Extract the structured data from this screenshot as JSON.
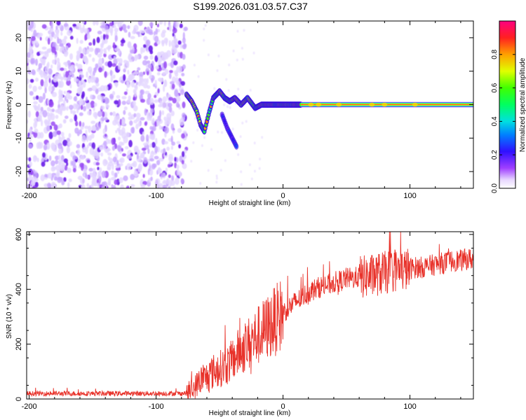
{
  "title": "S199.2026.031.03.57.C37",
  "chart_data": [
    {
      "type": "heatmap",
      "xlabel": "Height of straight line (km)",
      "ylabel": "Frequency (Hz)",
      "xlim": [
        -202,
        150
      ],
      "ylim": [
        -25,
        25
      ],
      "xticks": [
        -200,
        -100,
        0,
        100
      ],
      "xtick_labels": [
        "-200",
        "-100",
        "0",
        "100"
      ],
      "yticks": [
        -20,
        -10,
        0,
        10,
        20
      ],
      "ytick_labels": [
        "-20",
        "-10",
        "0",
        "10",
        "20"
      ],
      "colorbar": {
        "label": "Normalized spectral amplitude",
        "range": [
          0,
          1
        ],
        "ticks": [
          0.0,
          0.2,
          0.4,
          0.6,
          0.8
        ],
        "tick_labels": [
          "0.0",
          "0.2",
          "0.4",
          "0.6",
          "0.8"
        ]
      },
      "features": [
        {
          "name": "noise-region",
          "x_range": [
            -202,
            -76
          ],
          "freq_range": [
            -25,
            25
          ],
          "amplitude": 0.15
        },
        {
          "name": "doppler-track-main",
          "points": [
            [
              -76,
              3
            ],
            [
              -72,
              1
            ],
            [
              -68,
              -2
            ],
            [
              -65,
              -6
            ],
            [
              -62,
              -8
            ],
            [
              -58,
              -2
            ],
            [
              -55,
              2
            ],
            [
              -50,
              4
            ],
            [
              -46,
              2
            ],
            [
              -42,
              1
            ],
            [
              -38,
              2
            ],
            [
              -33,
              0
            ],
            [
              -28,
              2
            ],
            [
              -22,
              -1
            ],
            [
              -17,
              0
            ],
            [
              -12,
              0
            ],
            [
              -7,
              0
            ],
            [
              -2,
              0
            ],
            [
              4,
              0
            ],
            [
              10,
              0
            ],
            [
              150,
              0
            ]
          ],
          "amplitude": 0.85
        },
        {
          "name": "doppler-track-secondary",
          "points": [
            [
              -48,
              -3
            ],
            [
              -44,
              -7
            ],
            [
              -40,
              -10
            ],
            [
              -36,
              -13
            ]
          ],
          "amplitude": 0.3
        },
        {
          "name": "carrier-line",
          "x_range": [
            14,
            150
          ],
          "freq": 0,
          "amplitude": 1.0
        }
      ]
    },
    {
      "type": "line",
      "xlabel": "Height of straight line (km)",
      "ylabel": "SNR (10 * v/v)",
      "xlim": [
        -202,
        150
      ],
      "ylim": [
        0,
        610
      ],
      "xticks": [
        -200,
        -100,
        0,
        100
      ],
      "xtick_labels": [
        "-200",
        "-100",
        "0",
        "100"
      ],
      "yticks": [
        0,
        200,
        400,
        600
      ],
      "ytick_labels": [
        "0",
        "200",
        "400",
        "600"
      ],
      "series": [
        {
          "name": "SNR",
          "color": "#e8322a",
          "x": [
            -202,
            -180,
            -160,
            -140,
            -120,
            -100,
            -90,
            -80,
            -75,
            -70,
            -65,
            -60,
            -55,
            -50,
            -45,
            -40,
            -35,
            -30,
            -25,
            -20,
            -15,
            -10,
            -5,
            0,
            5,
            10,
            15,
            20,
            25,
            30,
            35,
            40,
            45,
            50,
            55,
            60,
            65,
            70,
            75,
            80,
            85,
            90,
            95,
            100,
            105,
            110,
            115,
            120,
            125,
            130,
            135,
            140,
            145,
            150
          ],
          "y": [
            20,
            20,
            20,
            20,
            20,
            20,
            20,
            20,
            22,
            40,
            70,
            80,
            100,
            110,
            120,
            140,
            170,
            190,
            210,
            230,
            250,
            270,
            290,
            315,
            335,
            355,
            370,
            390,
            400,
            410,
            415,
            425,
            430,
            440,
            440,
            445,
            445,
            450,
            455,
            460,
            465,
            470,
            470,
            475,
            480,
            480,
            485,
            490,
            495,
            500,
            505,
            505,
            510,
            510
          ]
        }
      ]
    }
  ],
  "colors": {
    "snr_line": "#e8322a",
    "axis": "#000000",
    "noise": "#7b3cf0"
  }
}
